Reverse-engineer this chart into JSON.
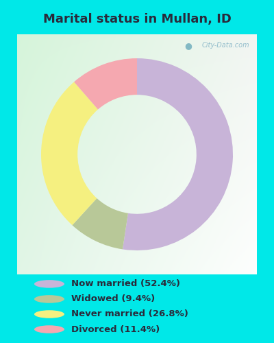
{
  "title": "Marital status in Mullan, ID",
  "slices": [
    52.4,
    9.4,
    26.8,
    11.4
  ],
  "labels": [
    "Now married (52.4%)",
    "Widowed (9.4%)",
    "Never married (26.8%)",
    "Divorced (11.4%)"
  ],
  "colors": [
    "#c8b4d8",
    "#b8c898",
    "#f5f080",
    "#f5a8b0"
  ],
  "bg_cyan": "#00e8e8",
  "title_color": "#2a2a3a",
  "legend_text_color": "#2a2a3a",
  "watermark": "City-Data.com",
  "start_angle": 90,
  "donut_width": 0.38,
  "chart_bg_color": "#e8f5ee"
}
